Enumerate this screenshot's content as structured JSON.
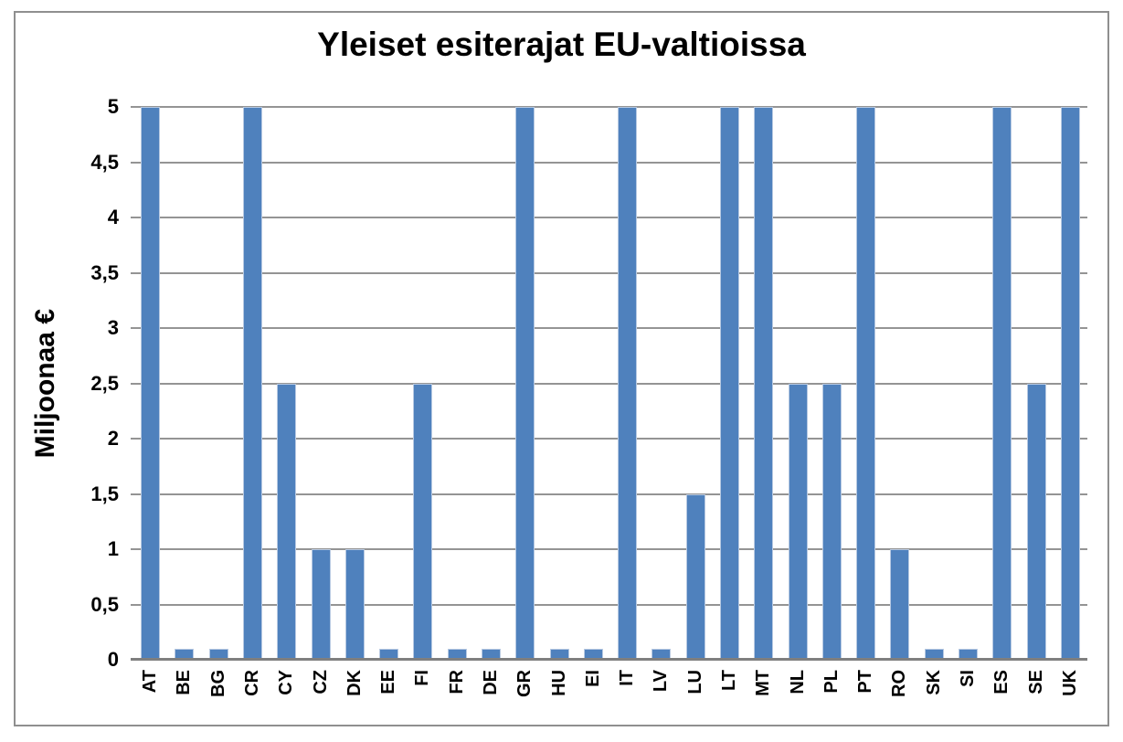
{
  "window": {
    "background_color": "#ffffff",
    "frame_border_color": "#8f8f8f"
  },
  "chart_data": {
    "type": "bar",
    "title": "Yleiset esiterajat EU-valtioissa",
    "ylabel": "Miljoonaa €",
    "xlabel": "",
    "categories": [
      "AT",
      "BE",
      "BG",
      "CR",
      "CY",
      "CZ",
      "DK",
      "EE",
      "FI",
      "FR",
      "DE",
      "GR",
      "HU",
      "EI",
      "IT",
      "LV",
      "LU",
      "LT",
      "MT",
      "NL",
      "PL",
      "PT",
      "RO",
      "SK",
      "SI",
      "ES",
      "SE",
      "UK"
    ],
    "values": [
      5,
      0.1,
      0.1,
      5,
      2.5,
      1,
      1,
      0.1,
      2.5,
      0.1,
      0.1,
      5,
      0.1,
      0.1,
      5,
      0.1,
      1.5,
      5,
      5,
      2.5,
      2.5,
      5,
      1,
      0.1,
      0.1,
      5,
      2.5,
      5
    ],
    "ylim": [
      0,
      5
    ],
    "ytick_step": 0.5,
    "ytick_labels_bottom_to_top": [
      "0",
      "0,5",
      "1",
      "1,5",
      "2",
      "2,5",
      "3",
      "3,5",
      "4",
      "4,5",
      "5"
    ],
    "decimal_separator": ",",
    "grid": true,
    "legend": "none",
    "bar_color": "#4f81bd",
    "bar_edge_color": "#b7c9e2",
    "gridline_color": "#949494",
    "axis_line_color": "#7f7f7f"
  }
}
